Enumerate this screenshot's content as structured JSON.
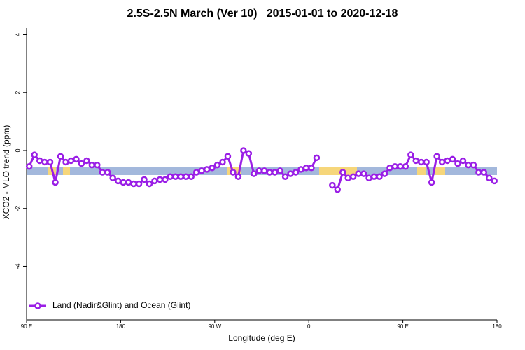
{
  "chart_data": {
    "type": "line",
    "title": "2.5S-2.5N March (Ver 10)   2015-01-01 to 2020-12-18",
    "x_label": "Longitude (deg E)",
    "y_label": "XCO2 - MLO trend (ppm)",
    "x": [
      92.5,
      97.5,
      102.5,
      107.5,
      112.5,
      117.5,
      122.5,
      127.5,
      132.5,
      137.5,
      142.5,
      147.5,
      152.5,
      157.5,
      162.5,
      167.5,
      172.5,
      177.5,
      182.5,
      187.5,
      192.5,
      197.5,
      202.5,
      207.5,
      212.5,
      217.5,
      222.5,
      227.5,
      232.5,
      237.5,
      242.5,
      247.5,
      252.5,
      257.5,
      262.5,
      267.5,
      272.5,
      277.5,
      282.5,
      287.5,
      292.5,
      297.5,
      302.5,
      307.5,
      312.5,
      317.5,
      322.5,
      327.5,
      332.5,
      337.5,
      342.5,
      347.5,
      352.5,
      357.5,
      362.5,
      367.5,
      372.5,
      377.5,
      382.5,
      387.5,
      392.5,
      397.5,
      402.5,
      407.5,
      412.5,
      417.5,
      422.5,
      427.5,
      432.5,
      437.5,
      442.5,
      447.5,
      452.5,
      457.5,
      462.5,
      467.5,
      472.5,
      477.5,
      482.5,
      487.5,
      492.5,
      497.5,
      502.5,
      507.5,
      512.5,
      517.5,
      522.5,
      527.5,
      532.5,
      537.5
    ],
    "series": [
      {
        "name": "Land (Nadir&Glint) and Ocean (Glint)",
        "color": "#9a1ee6",
        "values": [
          -0.55,
          -0.15,
          -0.35,
          -0.4,
          -0.4,
          -1.1,
          -0.2,
          -0.4,
          -0.35,
          -0.3,
          -0.45,
          -0.35,
          -0.5,
          -0.5,
          -0.75,
          -0.75,
          -0.95,
          -1.05,
          -1.1,
          -1.1,
          -1.15,
          -1.15,
          -1.0,
          -1.15,
          -1.05,
          -1.0,
          -1.0,
          -0.9,
          -0.9,
          -0.9,
          -0.9,
          -0.9,
          -0.75,
          -0.7,
          -0.65,
          -0.6,
          -0.5,
          -0.4,
          -0.2,
          -0.75,
          -0.9,
          0.0,
          -0.1,
          -0.8,
          -0.7,
          -0.7,
          -0.75,
          -0.75,
          -0.7,
          -0.9,
          -0.8,
          -0.75,
          -0.65,
          -0.6,
          -0.6,
          -0.25,
          null,
          null,
          -1.2,
          -1.35,
          -0.75,
          -0.95,
          -0.9,
          -0.8,
          -0.8,
          -0.95,
          -0.9,
          -0.9,
          -0.8,
          -0.6,
          -0.55,
          -0.55,
          -0.55,
          -0.15,
          -0.35,
          -0.4,
          -0.4,
          -1.1,
          -0.2,
          -0.4,
          -0.35,
          -0.3,
          -0.45,
          -0.35,
          -0.5,
          -0.5,
          -0.75,
          -0.75,
          -0.95,
          -1.05
        ]
      }
    ],
    "xlim": [
      90,
      540
    ],
    "xticks": [
      {
        "value": 90,
        "label": "90 E"
      },
      {
        "value": 180,
        "label": "180"
      },
      {
        "value": 270,
        "label": "90 W"
      },
      {
        "value": 360,
        "label": "0"
      },
      {
        "value": 450,
        "label": "90 E"
      },
      {
        "value": 540,
        "label": "180"
      }
    ],
    "ylim": [
      -5.85,
      4.35
    ],
    "yticks": [
      -4,
      -2,
      0,
      2,
      4
    ],
    "legend": "bottom-left"
  }
}
